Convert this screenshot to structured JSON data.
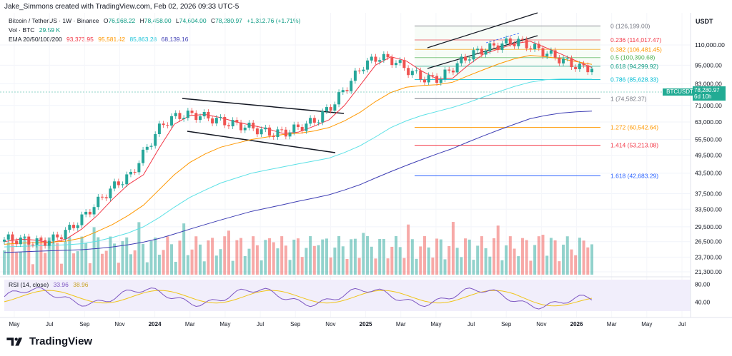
{
  "header": {
    "credit": "Jake_Simmons created with TradingView.com, Feb 02, 2026 09:33 UTC-5"
  },
  "legend": {
    "symbol": "Bitcoin / TetherUS · 1W · Binance",
    "ohlc": [
      {
        "k": "O",
        "v": "76,968.22"
      },
      {
        "k": "H",
        "v": "78,458.00"
      },
      {
        "k": "L",
        "v": "74,604.00"
      },
      {
        "k": "C",
        "v": "78,280.97"
      }
    ],
    "change": "+1,312.76 (+1.71%)",
    "vol_label": "Vol · BTC",
    "vol_value": "29.59 K",
    "ema_label": "EMA 20/50/100/200",
    "ema_values": [
      "93,373.95",
      "95,581.42",
      "85,863.28",
      "68,139.16"
    ],
    "rsi_label": "RSI (14, close)",
    "rsi_values": [
      "33.96",
      "38.96"
    ]
  },
  "currency": "USDT",
  "price_tag": {
    "symbol": "BTCUSDT",
    "price": "78,280.97",
    "countdown": "6d 10h"
  },
  "branding": "TradingView",
  "colors": {
    "up": "#26a69a",
    "down": "#ef5350",
    "ema20": "#f23645",
    "ema50": "#ff9800",
    "ema100": "#5ce1e6",
    "ema200": "#3f3fb4",
    "fib_blue": "#2962ff",
    "rsi": "#7e57c2",
    "rsi_ma": "#f0c419"
  },
  "chart_data": {
    "type": "line",
    "yscale": "log",
    "y_ticks": [
      "110,000.00",
      "95,000.00",
      "83,000.00",
      "71,000.00",
      "63,000.00",
      "55,500.00",
      "49,500.00",
      "43,500.00",
      "37,500.00",
      "33,500.00",
      "29,500.00",
      "26,500.00",
      "23,700.00",
      "21,300.00"
    ],
    "y_tick_values": [
      110000,
      95000,
      83000,
      71000,
      63000,
      55500,
      49500,
      43500,
      37500,
      33500,
      29500,
      26500,
      23700,
      21300
    ],
    "x_ticks": [
      "May",
      "Jul",
      "Sep",
      "Nov",
      "2024",
      "Mar",
      "May",
      "Jul",
      "Sep",
      "Nov",
      "2025",
      "Mar",
      "May",
      "Jul",
      "Sep",
      "Nov",
      "2026",
      "Mar",
      "May",
      "Jul"
    ],
    "fib_levels": [
      {
        "label": "0 (126,199.00)",
        "value": 126199,
        "color": "#787b86"
      },
      {
        "label": "0.236 (114,017.47)",
        "value": 114017.47,
        "color": "#f23645"
      },
      {
        "label": "0.382 (106,481.45)",
        "value": 106481.45,
        "color": "#ff9800"
      },
      {
        "label": "0.5 (100,390.68)",
        "value": 100390.68,
        "color": "#4caf50"
      },
      {
        "label": "0.618 (94,299.92)",
        "value": 94299.92,
        "color": "#089981"
      },
      {
        "label": "0.786 (85,628.33)",
        "value": 85628.33,
        "color": "#00bcd4"
      },
      {
        "label": "1 (74,582.37)",
        "value": 74582.37,
        "color": "#787b86"
      },
      {
        "label": "1.272 (60,542.64)",
        "value": 60542.64,
        "color": "#ff9800"
      },
      {
        "label": "1.414 (53,213.08)",
        "value": 53213.08,
        "color": "#f23645"
      },
      {
        "label": "1.618 (42,683.29)",
        "value": 42683.29,
        "color": "#2962ff"
      }
    ],
    "rsi_ticks": [
      "80.00",
      "40.00"
    ],
    "rsi_tick_values": [
      80,
      40
    ],
    "series": [
      {
        "name": "EMA 20",
        "values": [
          26500,
          27000,
          26800,
          26300,
          27000,
          29000,
          32000,
          36000,
          40000,
          43000,
          52000,
          62000,
          66000,
          66500,
          65000,
          63000,
          61500,
          60000,
          58000,
          58500,
          61000,
          64000,
          71000,
          82000,
          95000,
          101000,
          98000,
          91000,
          86000,
          86500,
          95000,
          103000,
          107000,
          111000,
          113000,
          108000,
          103000,
          98000,
          93374
        ]
      },
      {
        "name": "EMA 50",
        "values": [
          26000,
          26200,
          26300,
          26400,
          26600,
          27200,
          28500,
          30000,
          32000,
          34500,
          38500,
          43000,
          47000,
          50000,
          52500,
          54000,
          55500,
          56500,
          57500,
          58000,
          59000,
          60500,
          63500,
          67500,
          73000,
          78000,
          81000,
          82000,
          82500,
          84000,
          88000,
          92000,
          96000,
          99500,
          102000,
          101000,
          99500,
          97500,
          95581
        ]
      },
      {
        "name": "EMA 100",
        "values": [
          25500,
          25600,
          25700,
          25800,
          25900,
          26100,
          26600,
          27300,
          28200,
          29500,
          31500,
          34000,
          36500,
          38500,
          40500,
          42000,
          43500,
          44500,
          45500,
          46500,
          47500,
          48500,
          50500,
          53000,
          56500,
          60500,
          63500,
          66000,
          68000,
          70000,
          72500,
          75500,
          78500,
          81500,
          84000,
          85500,
          86000,
          86000,
          85863
        ]
      },
      {
        "name": "EMA 200",
        "values": [
          24500,
          24600,
          24700,
          24800,
          24900,
          25000,
          25200,
          25500,
          25900,
          26400,
          27100,
          28000,
          29000,
          30000,
          31000,
          32000,
          33000,
          33800,
          34600,
          35500,
          36300,
          37200,
          38500,
          40000,
          42000,
          44000,
          46000,
          48000,
          50000,
          52000,
          54500,
          57000,
          59500,
          62000,
          64500,
          66000,
          67200,
          67800,
          68139
        ]
      }
    ]
  }
}
